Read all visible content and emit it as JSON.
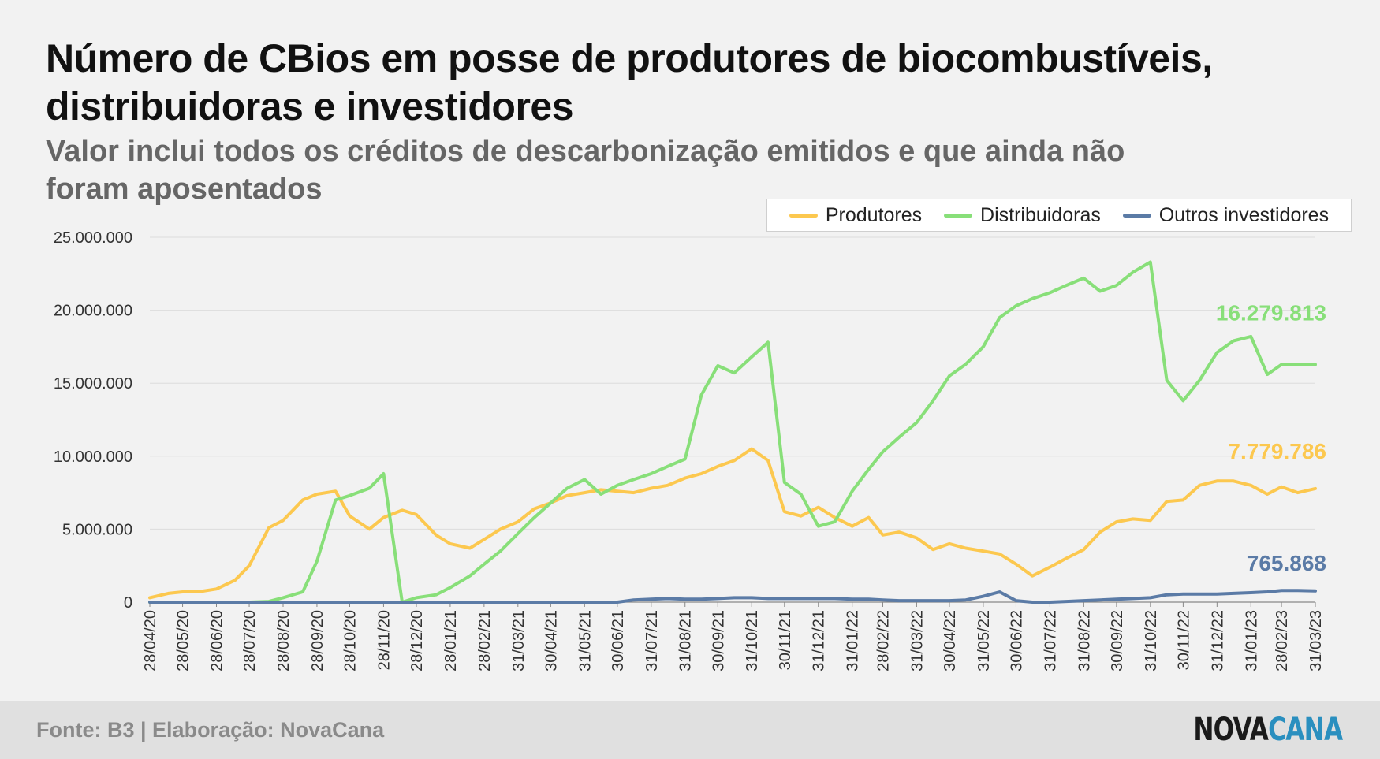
{
  "title": "Número de CBios em posse de produtores de biocombustíveis, distribuidoras e investidores",
  "subtitle": "Valor inclui todos os créditos de descarbonização emitidos e que ainda não foram aposentados",
  "source": "Fonte: B3 | Elaboração: NovaCana",
  "logo": {
    "part1": "NOVA",
    "part2": "CANA"
  },
  "colors": {
    "produtores": "#fcc84f",
    "distribuidoras": "#88df79",
    "outros": "#5b7ba6"
  },
  "chart_data": {
    "type": "line",
    "title": "Número de CBios em posse de produtores de biocombustíveis, distribuidoras e investidores",
    "ylim": [
      0,
      25000000
    ],
    "yticks": [
      0,
      5000000,
      10000000,
      15000000,
      20000000,
      25000000
    ],
    "ytick_labels": [
      "0",
      "5.000.000",
      "10.000.000",
      "15.000.000",
      "20.000.000",
      "25.000.000"
    ],
    "grid": true,
    "legend": "top-right",
    "x_tick_labels": [
      "28/04/20",
      "28/05/20",
      "28/06/20",
      "28/07/20",
      "28/08/20",
      "28/09/20",
      "28/10/20",
      "28/11/20",
      "28/12/20",
      "28/01/21",
      "28/02/21",
      "31/03/21",
      "30/04/21",
      "31/05/21",
      "30/06/21",
      "31/07/21",
      "31/08/21",
      "30/09/21",
      "31/10/21",
      "30/11/21",
      "31/12/21",
      "31/01/22",
      "28/02/22",
      "31/03/22",
      "30/04/22",
      "31/05/22",
      "30/06/22",
      "31/07/22",
      "31/08/22",
      "30/09/22",
      "31/10/22",
      "30/11/22",
      "31/12/22",
      "31/01/23",
      "28/02/23",
      "31/03/23"
    ],
    "x": [
      "28/04/20",
      "15/05/20",
      "28/05/20",
      "15/06/20",
      "28/06/20",
      "15/07/20",
      "28/07/20",
      "15/08/20",
      "28/08/20",
      "15/09/20",
      "28/09/20",
      "15/10/20",
      "28/10/20",
      "15/11/20",
      "28/11/20",
      "15/12/20",
      "28/12/20",
      "15/01/21",
      "28/01/21",
      "15/02/21",
      "28/02/21",
      "15/03/21",
      "31/03/21",
      "15/04/21",
      "30/04/21",
      "15/05/21",
      "31/05/21",
      "15/06/21",
      "30/06/21",
      "15/07/21",
      "31/07/21",
      "15/08/21",
      "31/08/21",
      "15/09/21",
      "30/09/21",
      "15/10/21",
      "31/10/21",
      "15/11/21",
      "30/11/21",
      "15/12/21",
      "31/12/21",
      "15/01/22",
      "31/01/22",
      "15/02/22",
      "28/02/22",
      "15/03/22",
      "31/03/22",
      "15/04/22",
      "30/04/22",
      "15/05/22",
      "31/05/22",
      "15/06/22",
      "30/06/22",
      "15/07/22",
      "31/07/22",
      "15/08/22",
      "31/08/22",
      "15/09/22",
      "30/09/22",
      "15/10/22",
      "31/10/22",
      "15/11/22",
      "30/11/22",
      "15/12/22",
      "31/12/22",
      "15/01/23",
      "31/01/23",
      "15/02/23",
      "28/02/23",
      "15/03/23",
      "31/03/23"
    ],
    "series": [
      {
        "name": "Produtores",
        "color": "#fcc84f",
        "end_label": "7.779.786",
        "values": [
          300000,
          600000,
          700000,
          750000,
          900000,
          1500000,
          2500000,
          5100000,
          5600000,
          7000000,
          7400000,
          7600000,
          5900000,
          5000000,
          5800000,
          6300000,
          6000000,
          4600000,
          4000000,
          3700000,
          4300000,
          5000000,
          5500000,
          6400000,
          6800000,
          7300000,
          7500000,
          7700000,
          7600000,
          7500000,
          7800000,
          8000000,
          8500000,
          8800000,
          9300000,
          9700000,
          10500000,
          9700000,
          6200000,
          5900000,
          6500000,
          5800000,
          5200000,
          5800000,
          4600000,
          4800000,
          4400000,
          3600000,
          4000000,
          3700000,
          3500000,
          3300000,
          2600000,
          1800000,
          2400000,
          3000000,
          3600000,
          4800000,
          5500000,
          5700000,
          5600000,
          6900000,
          7000000,
          8000000,
          8300000,
          8300000,
          8000000,
          7400000,
          7900000,
          7500000,
          7779786
        ]
      },
      {
        "name": "Distribuidoras",
        "color": "#88df79",
        "end_label": "16.279.813",
        "values": [
          0,
          0,
          0,
          0,
          0,
          0,
          0,
          50000,
          300000,
          700000,
          2800000,
          7000000,
          7300000,
          7800000,
          8800000,
          0,
          300000,
          500000,
          1000000,
          1800000,
          2600000,
          3500000,
          4700000,
          5800000,
          6800000,
          7800000,
          8400000,
          7400000,
          8000000,
          8400000,
          8800000,
          9300000,
          9800000,
          14200000,
          16200000,
          15700000,
          16800000,
          17800000,
          8200000,
          7400000,
          5200000,
          5500000,
          7600000,
          9100000,
          10300000,
          11300000,
          12300000,
          13800000,
          15500000,
          16300000,
          17500000,
          19500000,
          20300000,
          20800000,
          21200000,
          21700000,
          22200000,
          21300000,
          21700000,
          22600000,
          23300000,
          15200000,
          13800000,
          15200000,
          17100000,
          17900000,
          18200000,
          15600000,
          16279813,
          16279813,
          16279813
        ]
      },
      {
        "name": "Outros investidores",
        "color": "#5b7ba6",
        "end_label": "765.868",
        "values": [
          0,
          0,
          0,
          0,
          0,
          0,
          0,
          0,
          0,
          0,
          0,
          0,
          0,
          0,
          0,
          0,
          0,
          0,
          0,
          0,
          0,
          0,
          0,
          0,
          0,
          0,
          0,
          0,
          0,
          150000,
          200000,
          250000,
          200000,
          200000,
          250000,
          300000,
          300000,
          250000,
          250000,
          250000,
          250000,
          250000,
          200000,
          200000,
          150000,
          100000,
          100000,
          100000,
          100000,
          150000,
          400000,
          700000,
          100000,
          0,
          0,
          50000,
          100000,
          150000,
          200000,
          250000,
          300000,
          500000,
          550000,
          550000,
          550000,
          600000,
          650000,
          700000,
          800000,
          800000,
          765868
        ]
      }
    ]
  }
}
